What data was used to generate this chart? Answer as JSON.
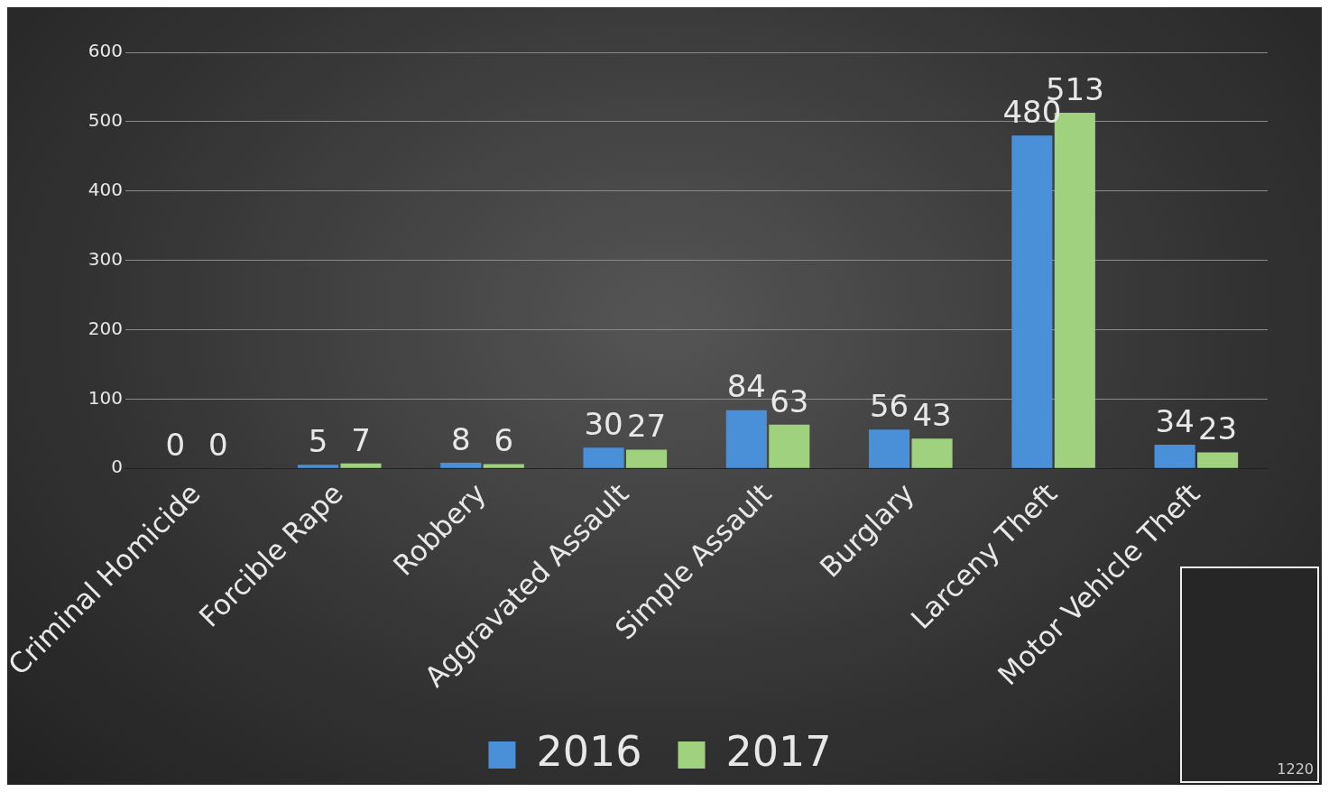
{
  "chart_data": {
    "type": "bar",
    "categories": [
      "Criminal Homicide",
      "Forcible Rape",
      "Robbery",
      "Aggravated Assault",
      "Simple Assault",
      "Burglary",
      "Larceny Theft",
      "Motor Vehicle Theft"
    ],
    "series": [
      {
        "name": "2016",
        "color": "#4a90d9",
        "values": [
          0,
          5,
          8,
          30,
          84,
          56,
          480,
          34
        ]
      },
      {
        "name": "2017",
        "color": "#9fd17f",
        "values": [
          0,
          7,
          6,
          27,
          63,
          43,
          513,
          23
        ]
      }
    ],
    "ylim": [
      0,
      600
    ],
    "yticks": [
      0,
      100,
      200,
      300,
      400,
      500,
      600
    ],
    "grid": "y",
    "legend": "bottom",
    "data_labels": true,
    "annotations": [
      "1220"
    ]
  }
}
